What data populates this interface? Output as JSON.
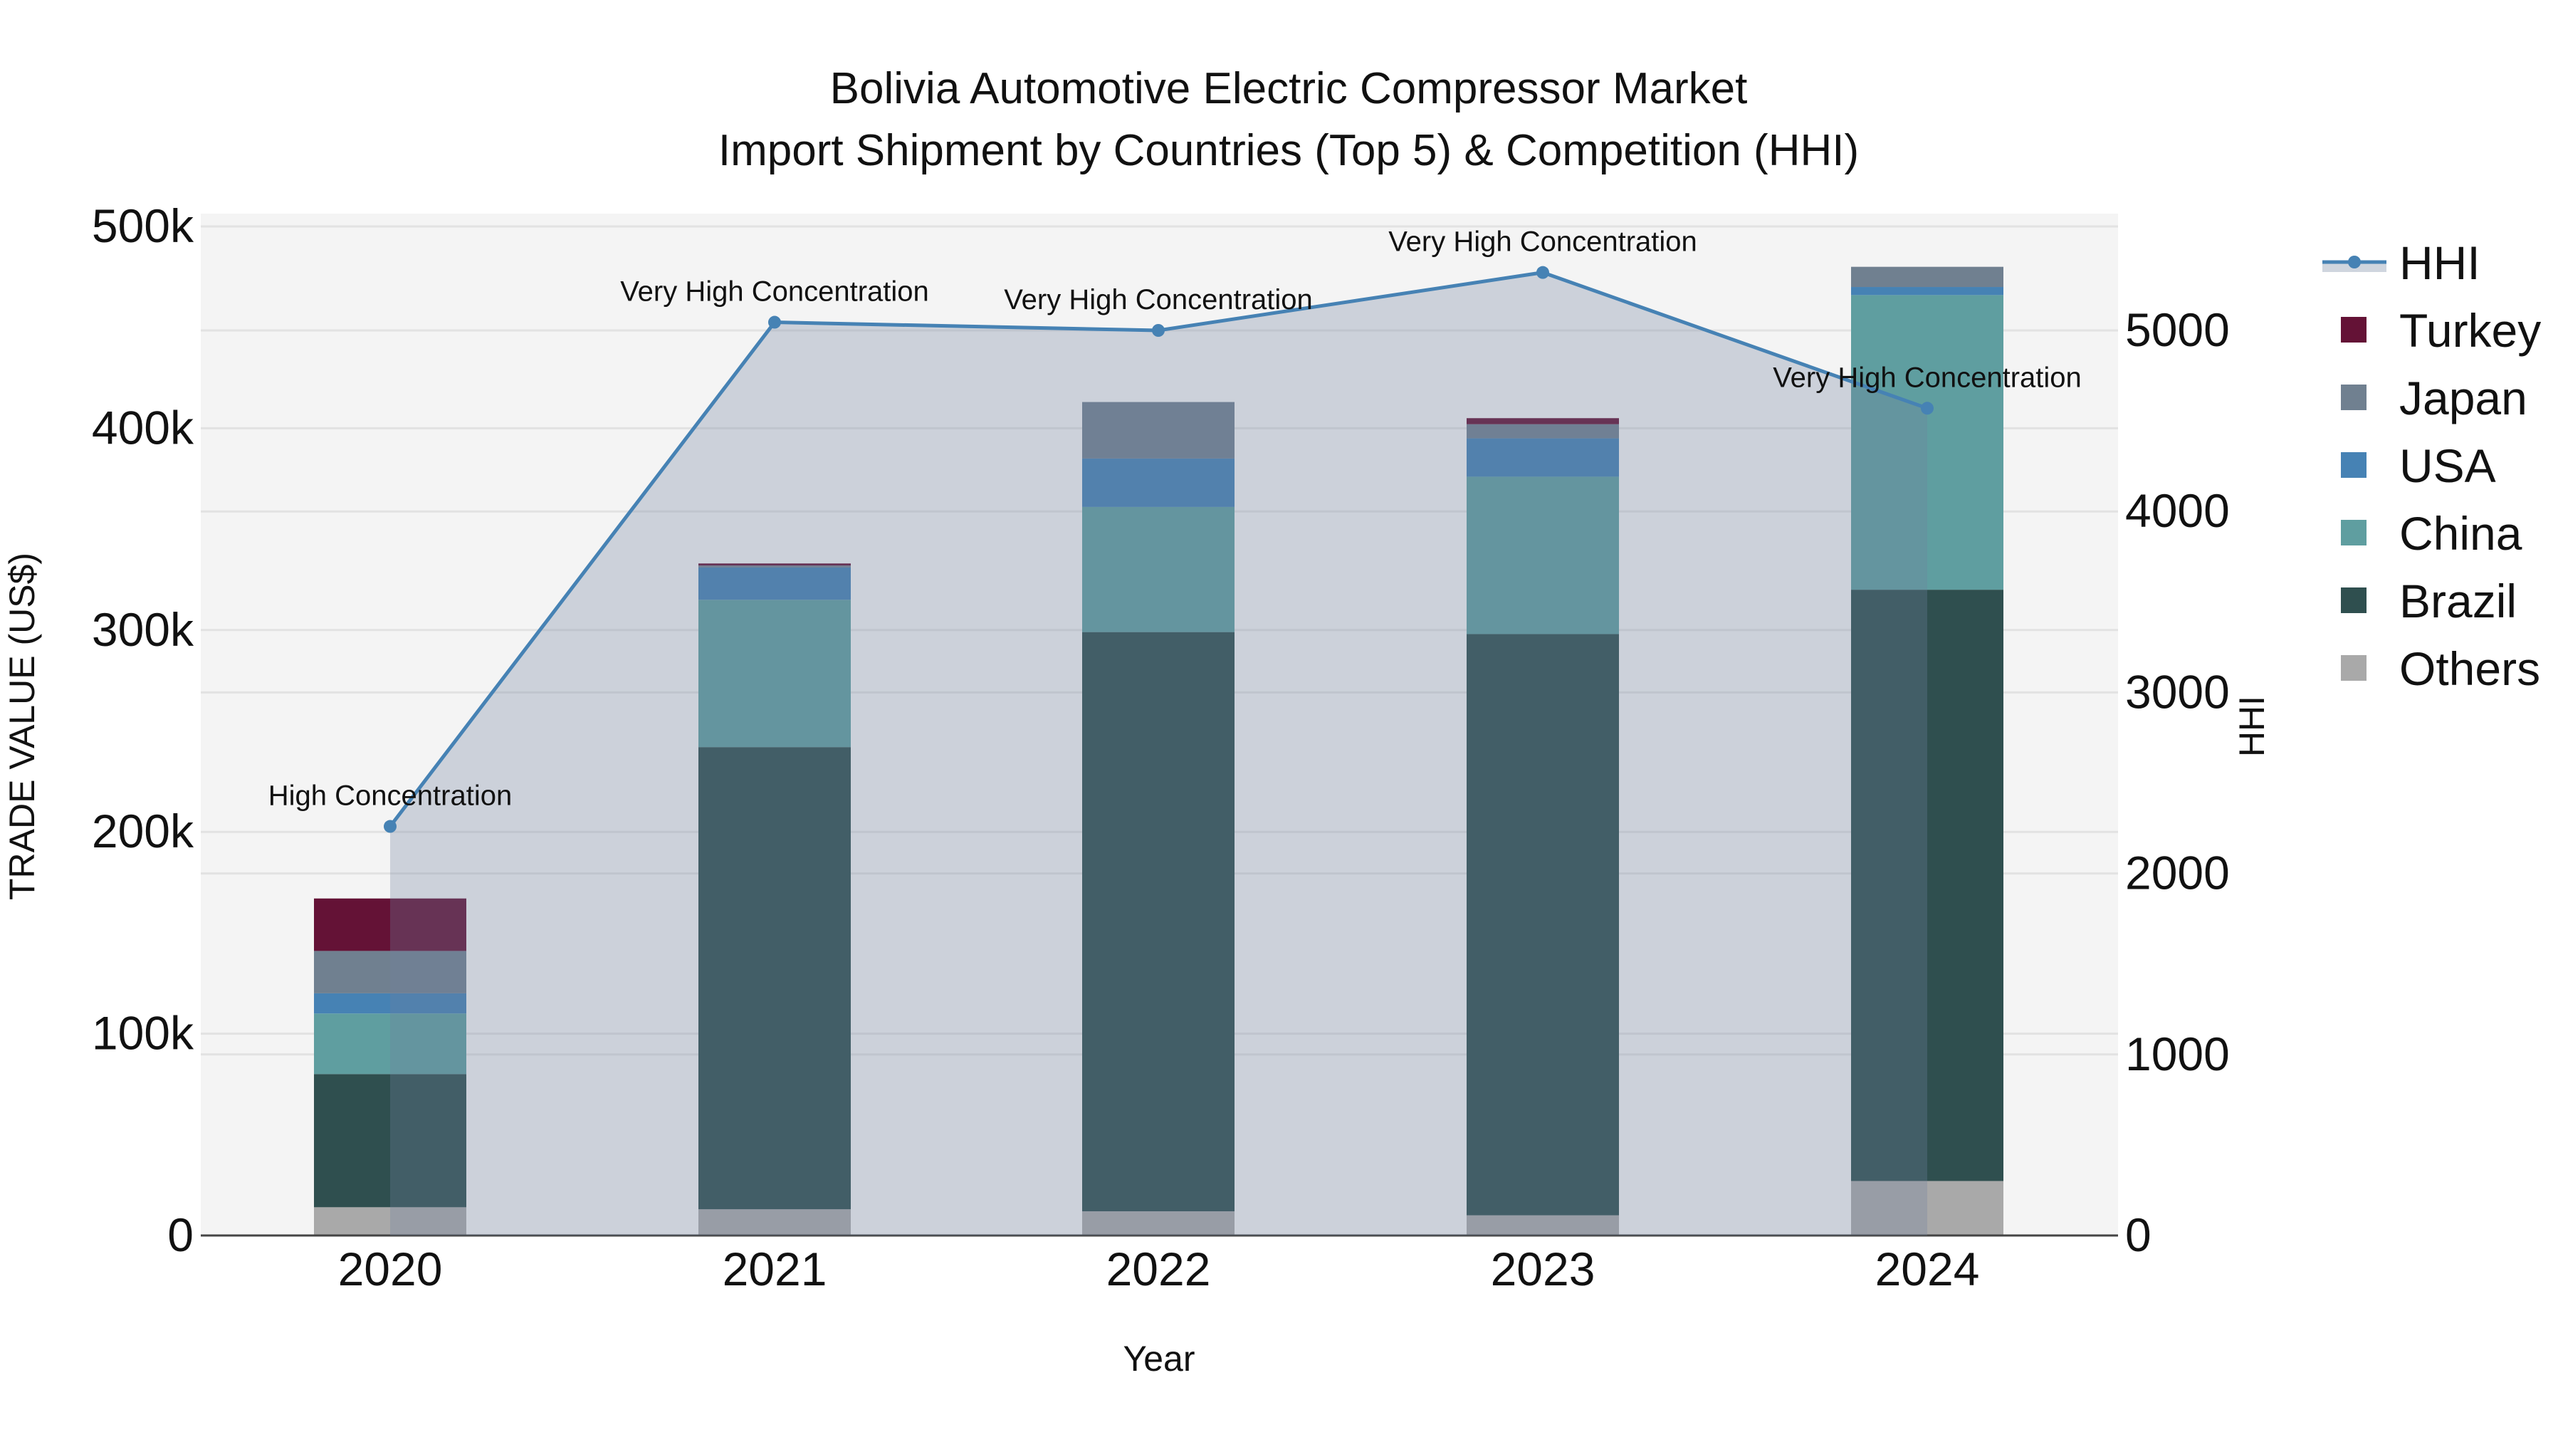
{
  "title": {
    "line1": "Bolivia Automotive Electric Compressor Market",
    "line2": "Import Shipment by Countries (Top 5) & Competition (HHI)"
  },
  "axes": {
    "x_title": "Year",
    "y_left_title": "TRADE VALUE (US$)",
    "y_right_title": "HHI",
    "y_left_ticks": [
      "0",
      "100k",
      "200k",
      "300k",
      "400k",
      "500k"
    ],
    "y_right_ticks": [
      "0",
      "1000",
      "2000",
      "3000",
      "4000",
      "5000"
    ],
    "x_ticks": [
      "2020",
      "2021",
      "2022",
      "2023",
      "2024"
    ]
  },
  "legend": [
    {
      "name": "HHI",
      "color": "#4682b4",
      "type": "line"
    },
    {
      "name": "Turkey",
      "color": "#641236",
      "type": "bar"
    },
    {
      "name": "Japan",
      "color": "#708090",
      "type": "bar"
    },
    {
      "name": "USA",
      "color": "#4682b4",
      "type": "bar"
    },
    {
      "name": "China",
      "color": "#5f9ea0",
      "type": "bar"
    },
    {
      "name": "Brazil",
      "color": "#2f4f4f",
      "type": "bar"
    },
    {
      "name": "Others",
      "color": "#a9a9a9",
      "type": "bar"
    }
  ],
  "chart_data": {
    "type": "bar",
    "stacked": true,
    "title": "Bolivia Automotive Electric Compressor Market — Import Shipment by Countries (Top 5) & Competition (HHI)",
    "xlabel": "Year",
    "ylabel": "TRADE VALUE (US$)",
    "y2label": "HHI",
    "categories": [
      "2020",
      "2021",
      "2022",
      "2023",
      "2024"
    ],
    "ylim": [
      0,
      500000
    ],
    "y2lim": [
      0,
      5600
    ],
    "grid": true,
    "legend_position": "right",
    "series": [
      {
        "name": "Others",
        "color": "#a9a9a9",
        "values": [
          14000,
          13000,
          12000,
          10000,
          27000
        ]
      },
      {
        "name": "Brazil",
        "color": "#2f4f4f",
        "values": [
          66000,
          229000,
          287000,
          288000,
          293000
        ]
      },
      {
        "name": "China",
        "color": "#5f9ea0",
        "values": [
          30000,
          73000,
          62000,
          78000,
          146000
        ]
      },
      {
        "name": "USA",
        "color": "#4682b4",
        "values": [
          10000,
          16000,
          24000,
          19000,
          4000
        ]
      },
      {
        "name": "Japan",
        "color": "#708090",
        "values": [
          21000,
          1000,
          28000,
          7000,
          10000
        ]
      },
      {
        "name": "Turkey",
        "color": "#641236",
        "values": [
          26000,
          1000,
          0,
          3000,
          0
        ]
      }
    ],
    "line_series": {
      "name": "HHI",
      "axis": "right",
      "color": "#4682b4",
      "values": [
        2260,
        5045,
        5000,
        5320,
        4570
      ],
      "annotations": [
        "High Concentration",
        "Very High Concentration",
        "Very High Concentration",
        "Very High Concentration",
        "Very High Concentration"
      ]
    }
  }
}
